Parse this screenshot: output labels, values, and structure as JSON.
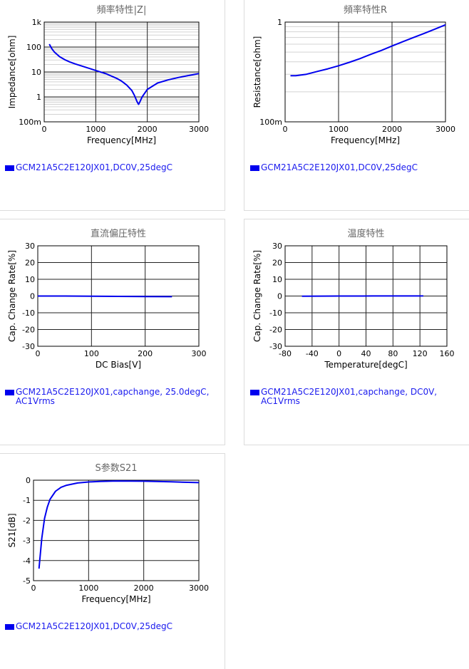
{
  "charts": [
    {
      "title": "頻率特性|Z|",
      "xlabel": "Frequency[MHz]",
      "ylabel": "Impedance[ohm]",
      "legend": "GCM21A5C2E120JX01,DC0V,25degC"
    },
    {
      "title": "頻率特性R",
      "xlabel": "Frequency[MHz]",
      "ylabel": "Resistance[ohm]",
      "legend": "GCM21A5C2E120JX01,DC0V,25degC"
    },
    {
      "title": "直流偏圧特性",
      "xlabel": "DC Bias[V]",
      "ylabel": "Cap. Change Rate[%]",
      "legend": "GCM21A5C2E120JX01,capchange, 25.0degC, AC1Vrms"
    },
    {
      "title": "温度特性",
      "xlabel": "Temperature[degC]",
      "ylabel": "Cap. Change Rate[%]",
      "legend": "GCM21A5C2E120JX01,capchange, DC0V, AC1Vrms"
    },
    {
      "title": "S参数S21",
      "xlabel": "Frequency[MHz]",
      "ylabel": "S21[dB]",
      "legend": "GCM21A5C2E120JX01,DC0V,25degC"
    }
  ],
  "chart_data": [
    {
      "type": "line",
      "title": "頻率特性|Z|",
      "xlabel": "Frequency[MHz]",
      "ylabel": "Impedance[ohm]",
      "xlim": [
        0,
        3000
      ],
      "ylim": [
        0.1,
        1000
      ],
      "yscale": "log",
      "xticks": [
        0,
        1000,
        2000,
        3000
      ],
      "xtick_labels": [
        "0",
        "1000",
        "2000",
        "3000"
      ],
      "yticks": [
        0.1,
        1,
        10,
        100,
        1000
      ],
      "ytick_labels": [
        "100m",
        "1",
        "10",
        "100",
        "1k"
      ],
      "grid": true,
      "minor_grid": true,
      "color": "#0000ee",
      "series": [
        {
          "x": [
            100,
            150,
            200,
            300,
            400,
            500,
            600,
            800,
            1000,
            1200,
            1400,
            1500,
            1600,
            1700,
            1750,
            1800,
            1830,
            1860,
            1900,
            2000,
            2200,
            2400,
            2600,
            2800,
            3000
          ],
          "y": [
            130,
            85,
            62,
            41,
            31,
            25,
            21,
            15.5,
            11.5,
            8.5,
            5.6,
            4.3,
            3.0,
            1.8,
            1.15,
            0.65,
            0.5,
            0.65,
            1.0,
            2.0,
            3.6,
            4.8,
            6.0,
            7.2,
            8.6
          ]
        }
      ]
    },
    {
      "type": "line",
      "title": "頻率特性R",
      "xlabel": "Frequency[MHz]",
      "ylabel": "Resistance[ohm]",
      "xlim": [
        0,
        3000
      ],
      "ylim": [
        0.1,
        1
      ],
      "yscale": "log",
      "xticks": [
        0,
        1000,
        2000,
        3000
      ],
      "xtick_labels": [
        "0",
        "1000",
        "2000",
        "3000"
      ],
      "yticks": [
        0.1,
        1
      ],
      "ytick_labels": [
        "100m",
        "1"
      ],
      "grid": true,
      "minor_grid": true,
      "color": "#0000ee",
      "series": [
        {
          "x": [
            100,
            200,
            300,
            400,
            600,
            800,
            1000,
            1200,
            1400,
            1600,
            1800,
            2000,
            2200,
            2400,
            2600,
            2800,
            3000
          ],
          "y": [
            0.29,
            0.29,
            0.295,
            0.3,
            0.32,
            0.34,
            0.365,
            0.395,
            0.43,
            0.475,
            0.52,
            0.575,
            0.635,
            0.7,
            0.77,
            0.85,
            0.94
          ]
        }
      ]
    },
    {
      "type": "line",
      "title": "直流偏圧特性",
      "xlabel": "DC Bias[V]",
      "ylabel": "Cap. Change Rate[%]",
      "xlim": [
        0,
        300
      ],
      "ylim": [
        -30,
        30
      ],
      "xticks": [
        0,
        100,
        200,
        300
      ],
      "xtick_labels": [
        "0",
        "100",
        "200",
        "300"
      ],
      "yticks": [
        -30,
        -20,
        -10,
        0,
        10,
        20,
        30
      ],
      "ytick_labels": [
        "-30",
        "-20",
        "-10",
        "0",
        "10",
        "20",
        "30"
      ],
      "grid": true,
      "color": "#0000ee",
      "series": [
        {
          "x": [
            0,
            50,
            100,
            150,
            200,
            250
          ],
          "y": [
            0,
            0,
            -0.1,
            -0.2,
            -0.3,
            -0.4
          ]
        }
      ]
    },
    {
      "type": "line",
      "title": "温度特性",
      "xlabel": "Temperature[degC]",
      "ylabel": "Cap. Change Rate[%]",
      "xlim": [
        -80,
        160
      ],
      "ylim": [
        -30,
        30
      ],
      "xticks": [
        -80,
        -40,
        0,
        40,
        80,
        120,
        160
      ],
      "xtick_labels": [
        "-80",
        "-40",
        "0",
        "40",
        "80",
        "120",
        "160"
      ],
      "yticks": [
        -30,
        -20,
        -10,
        0,
        10,
        20,
        30
      ],
      "ytick_labels": [
        "-30",
        "-20",
        "-10",
        "0",
        "10",
        "20",
        "30"
      ],
      "grid": true,
      "color": "#0000ee",
      "series": [
        {
          "x": [
            -55,
            -25,
            0,
            25,
            50,
            85,
            125
          ],
          "y": [
            -0.1,
            -0.05,
            0,
            0,
            0.05,
            0.05,
            0.05
          ]
        }
      ]
    },
    {
      "type": "line",
      "title": "S参数S21",
      "xlabel": "Frequency[MHz]",
      "ylabel": "S21[dB]",
      "xlim": [
        0,
        3000
      ],
      "ylim": [
        -5,
        0
      ],
      "xticks": [
        0,
        1000,
        2000,
        3000
      ],
      "xtick_labels": [
        "0",
        "1000",
        "2000",
        "3000"
      ],
      "yticks": [
        -5,
        -4,
        -3,
        -2,
        -1,
        0
      ],
      "ytick_labels": [
        "-5",
        "-4",
        "-3",
        "-2",
        "-1",
        "0"
      ],
      "grid": true,
      "color": "#0000ee",
      "series": [
        {
          "x": [
            100,
            150,
            200,
            250,
            300,
            400,
            500,
            600,
            800,
            1000,
            1200,
            1500,
            2000,
            2500,
            3000
          ],
          "y": [
            -4.4,
            -2.9,
            -1.9,
            -1.35,
            -0.95,
            -0.55,
            -0.35,
            -0.25,
            -0.14,
            -0.09,
            -0.06,
            -0.04,
            -0.05,
            -0.08,
            -0.12
          ]
        }
      ]
    }
  ]
}
